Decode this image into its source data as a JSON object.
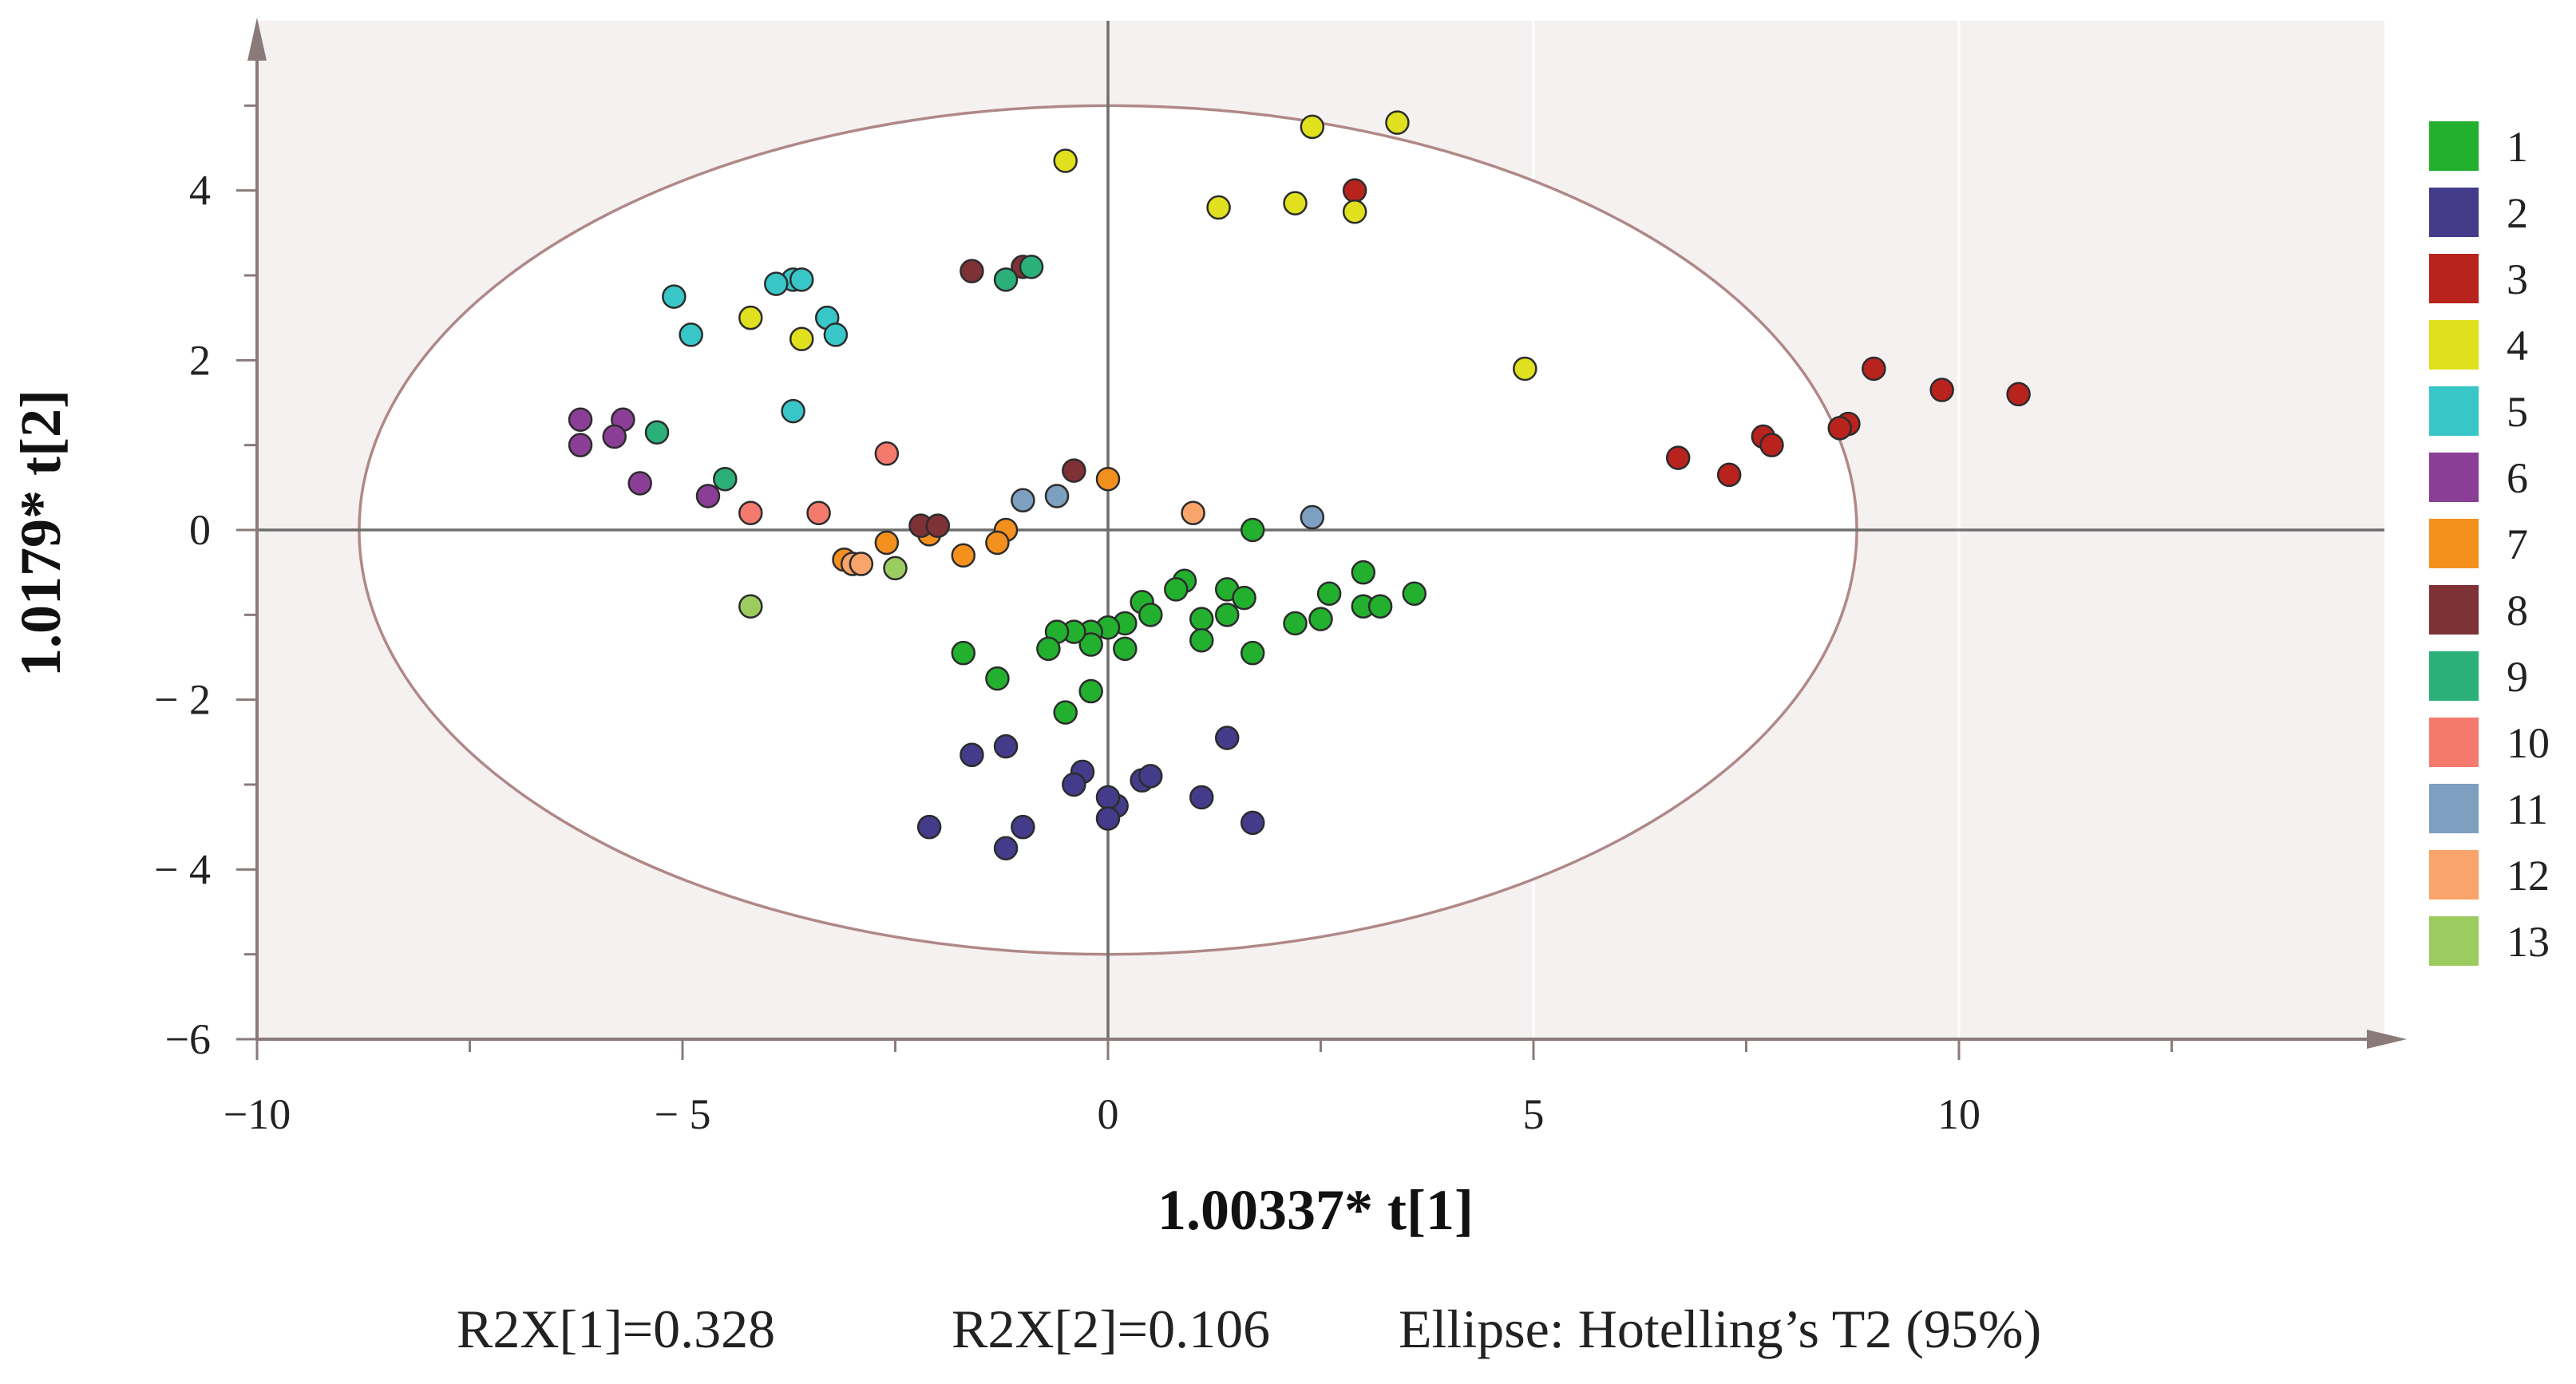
{
  "chart_data": {
    "type": "scatter",
    "title": "",
    "xlabel": "1.00337* t[1]",
    "ylabel": "1.0179* t[2]",
    "xlim": [
      -10,
      15
    ],
    "ylim": [
      -6,
      6
    ],
    "x_ticks": [
      {
        "value": -10,
        "label": "−10"
      },
      {
        "value": -5,
        "label": "− 5"
      },
      {
        "value": 0,
        "label": "0"
      },
      {
        "value": 5,
        "label": "5"
      },
      {
        "value": 10,
        "label": "10"
      }
    ],
    "y_ticks": [
      {
        "value": 4,
        "label": "4"
      },
      {
        "value": 2,
        "label": "2"
      },
      {
        "value": 0,
        "label": "0"
      },
      {
        "value": -2,
        "label": "− 2"
      },
      {
        "value": -4,
        "label": "− 4"
      },
      {
        "value": -6,
        "label": "−6"
      }
    ],
    "ellipse": {
      "label": "Hotelling’s T2 (95%)",
      "center": [
        0,
        0
      ],
      "rx": 8.8,
      "ry": 5.0
    },
    "footer": {
      "r2x1": "R2X[1]=0.328",
      "r2x2": "R2X[2]=0.106",
      "ellipse": "Ellipse: Hotelling’s T2 (95%)"
    },
    "series": [
      {
        "name": "1",
        "color": "#22b02e",
        "points": [
          [
            1.7,
            0.0
          ],
          [
            0.9,
            -0.6
          ],
          [
            1.4,
            -0.7
          ],
          [
            1.6,
            -0.8
          ],
          [
            2.6,
            -0.75
          ],
          [
            3.0,
            -0.5
          ],
          [
            3.6,
            -0.75
          ],
          [
            3.0,
            -0.9
          ],
          [
            3.2,
            -0.9
          ],
          [
            2.5,
            -1.05
          ],
          [
            2.2,
            -1.1
          ],
          [
            1.7,
            -1.45
          ],
          [
            1.1,
            -1.05
          ],
          [
            1.1,
            -1.3
          ],
          [
            1.4,
            -1.0
          ],
          [
            0.8,
            -0.7
          ],
          [
            0.4,
            -0.85
          ],
          [
            0.5,
            -1.0
          ],
          [
            0.2,
            -1.1
          ],
          [
            0.0,
            -1.15
          ],
          [
            -0.2,
            -1.2
          ],
          [
            -0.2,
            -1.35
          ],
          [
            0.2,
            -1.4
          ],
          [
            -0.4,
            -1.2
          ],
          [
            -0.6,
            -1.2
          ],
          [
            -0.7,
            -1.4
          ],
          [
            -1.7,
            -1.45
          ],
          [
            -1.3,
            -1.75
          ],
          [
            -0.2,
            -1.9
          ],
          [
            -0.5,
            -2.15
          ]
        ]
      },
      {
        "name": "2",
        "color": "#443c8a",
        "points": [
          [
            1.4,
            -2.45
          ],
          [
            -1.2,
            -2.55
          ],
          [
            -1.6,
            -2.65
          ],
          [
            -0.3,
            -2.85
          ],
          [
            -0.4,
            -3.0
          ],
          [
            0.4,
            -2.95
          ],
          [
            0.5,
            -2.9
          ],
          [
            0.1,
            -3.25
          ],
          [
            0.0,
            -3.15
          ],
          [
            1.1,
            -3.15
          ],
          [
            1.7,
            -3.45
          ],
          [
            -2.1,
            -3.5
          ],
          [
            -1.0,
            -3.5
          ],
          [
            -1.2,
            -3.75
          ],
          [
            0.0,
            -3.4
          ]
        ]
      },
      {
        "name": "3",
        "color": "#b8231e",
        "points": [
          [
            2.9,
            4.0
          ],
          [
            9.0,
            1.9
          ],
          [
            9.8,
            1.65
          ],
          [
            10.7,
            1.6
          ],
          [
            8.7,
            1.25
          ],
          [
            8.6,
            1.2
          ],
          [
            7.7,
            1.1
          ],
          [
            7.8,
            1.0
          ],
          [
            6.7,
            0.85
          ],
          [
            7.3,
            0.65
          ]
        ]
      },
      {
        "name": "4",
        "color": "#e0e01e",
        "points": [
          [
            3.4,
            4.8
          ],
          [
            2.4,
            4.75
          ],
          [
            -0.5,
            4.35
          ],
          [
            2.2,
            3.85
          ],
          [
            1.3,
            3.8
          ],
          [
            2.9,
            3.75
          ],
          [
            4.9,
            1.9
          ],
          [
            -4.2,
            2.5
          ],
          [
            -3.6,
            2.25
          ]
        ]
      },
      {
        "name": "5",
        "color": "#38c6c8",
        "points": [
          [
            -3.7,
            2.95
          ],
          [
            -3.6,
            2.95
          ],
          [
            -3.9,
            2.9
          ],
          [
            -5.1,
            2.75
          ],
          [
            -3.3,
            2.5
          ],
          [
            -3.2,
            2.3
          ],
          [
            -4.9,
            2.3
          ],
          [
            -3.7,
            1.4
          ]
        ]
      },
      {
        "name": "6",
        "color": "#8b3e96",
        "points": [
          [
            -6.2,
            1.3
          ],
          [
            -5.7,
            1.3
          ],
          [
            -6.2,
            1.0
          ],
          [
            -5.8,
            1.1
          ],
          [
            -5.5,
            0.55
          ],
          [
            -4.7,
            0.4
          ]
        ]
      },
      {
        "name": "7",
        "color": "#f4901e",
        "points": [
          [
            0.0,
            0.6
          ],
          [
            -1.2,
            0.0
          ],
          [
            -1.3,
            -0.15
          ],
          [
            -2.1,
            -0.05
          ],
          [
            -2.6,
            -0.15
          ],
          [
            -1.7,
            -0.3
          ],
          [
            -3.1,
            -0.35
          ]
        ]
      },
      {
        "name": "8",
        "color": "#7e3236",
        "points": [
          [
            -1.6,
            3.05
          ],
          [
            -1.0,
            3.1
          ],
          [
            -0.4,
            0.7
          ],
          [
            -2.2,
            0.05
          ],
          [
            -2.0,
            0.05
          ]
        ]
      },
      {
        "name": "9",
        "color": "#2bb07a",
        "points": [
          [
            -0.9,
            3.1
          ],
          [
            -1.2,
            2.95
          ],
          [
            -5.3,
            1.15
          ],
          [
            -4.5,
            0.6
          ]
        ]
      },
      {
        "name": "10",
        "color": "#f47a6e",
        "points": [
          [
            -2.6,
            0.9
          ],
          [
            -4.2,
            0.2
          ],
          [
            -3.4,
            0.2
          ]
        ]
      },
      {
        "name": "11",
        "color": "#7ea0c0",
        "points": [
          [
            -1.0,
            0.35
          ],
          [
            -0.6,
            0.4
          ],
          [
            2.4,
            0.15
          ]
        ]
      },
      {
        "name": "12",
        "color": "#f8a46a",
        "points": [
          [
            -3.0,
            -0.4
          ],
          [
            -2.9,
            -0.4
          ],
          [
            1.0,
            0.2
          ]
        ]
      },
      {
        "name": "13",
        "color": "#9ccc60",
        "points": [
          [
            -2.5,
            -0.45
          ],
          [
            -4.2,
            -0.9
          ]
        ]
      }
    ]
  }
}
